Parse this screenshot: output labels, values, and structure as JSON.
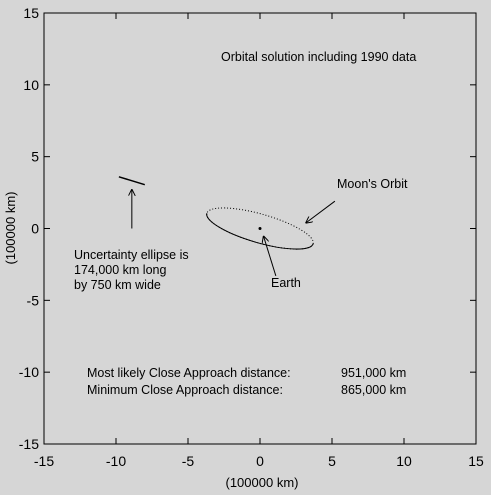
{
  "colors": {
    "background": "#d6d6d6",
    "ink": "#000000"
  },
  "chart_data": {
    "type": "scatter",
    "title": "Orbital solution including 1990 data",
    "xlabel": "(100000 km)",
    "ylabel": "(100000 km)",
    "xlim": [
      -15,
      15
    ],
    "ylim": [
      -15,
      15
    ],
    "xticks": [
      -15,
      -10,
      -5,
      0,
      5,
      10,
      15
    ],
    "yticks": [
      -15,
      -10,
      -5,
      0,
      5,
      10,
      15
    ],
    "grid": false,
    "earth": {
      "x": 0,
      "y": 0
    },
    "moon_orbit": {
      "cx": 0,
      "cy": 0,
      "semi_major": 3.84,
      "semi_minor": 1.0,
      "angle_deg": -16
    },
    "uncertainty_segment": {
      "x1": -9.8,
      "y1": 3.6,
      "x2": -8.0,
      "y2": 3.05
    },
    "annotations": {
      "ellipse_note": [
        "Uncertainty ellipse is",
        "174,000 km long",
        "by 750 km wide"
      ],
      "earth_label": "Earth",
      "moon_label": "Moon's Orbit",
      "close_approach": [
        {
          "label": "Most likely Close Approach distance:",
          "value": "951,000 km"
        },
        {
          "label": "Minimum Close Approach distance:",
          "value": "865,000 km"
        }
      ]
    },
    "arrows": [
      {
        "from": [
          -8.9,
          0.0
        ],
        "to": [
          -8.9,
          2.7
        ]
      },
      {
        "from": [
          1.1,
          -3.3
        ],
        "to": [
          0.25,
          -0.55
        ]
      },
      {
        "from": [
          5.2,
          1.9
        ],
        "to": [
          3.2,
          0.4
        ]
      }
    ]
  }
}
